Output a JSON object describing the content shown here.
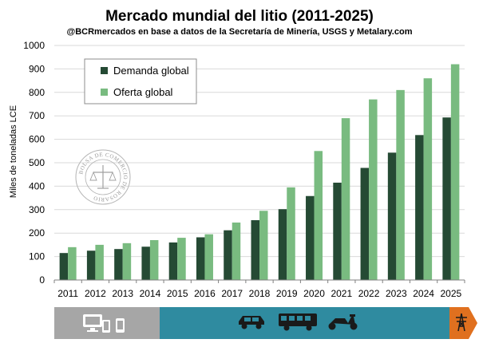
{
  "chart_data": {
    "type": "bar",
    "title": "Mercado mundial del litio (2011-2025)",
    "subtitle": "@BCRmercados en base a datos de la Secretaría de Minería, USGS y Metalary.com",
    "xlabel": "",
    "ylabel": "Miles de toneladas LCE",
    "ylim": [
      0,
      1000
    ],
    "yticks": [
      0,
      100,
      200,
      300,
      400,
      500,
      600,
      700,
      800,
      900,
      1000
    ],
    "grid": true,
    "legend_position": "top-left",
    "categories": [
      "2011",
      "2012",
      "2013",
      "2014",
      "2015",
      "2016",
      "2017",
      "2018",
      "2019",
      "2020",
      "2021",
      "2022",
      "2023",
      "2024",
      "2025"
    ],
    "series": [
      {
        "name": "Demanda global",
        "color": "#254a34",
        "values": [
          115,
          125,
          132,
          142,
          160,
          182,
          212,
          255,
          302,
          358,
          415,
          478,
          543,
          618,
          693
        ]
      },
      {
        "name": "Oferta global",
        "color": "#79bb80",
        "values": [
          140,
          150,
          157,
          170,
          180,
          195,
          245,
          295,
          395,
          550,
          690,
          770,
          810,
          860,
          920
        ]
      }
    ]
  },
  "colors": {
    "grid": "#d9d9d9",
    "axis": "#808080",
    "period_electronics": "#a6a6a6",
    "period_vehicles": "#2f8ba0",
    "period_energy": "#e0701f"
  },
  "periods": [
    {
      "name": "electronics",
      "icons": [
        "laptop-icon",
        "tablet-icon",
        "phone-icon"
      ]
    },
    {
      "name": "vehicles",
      "icons": [
        "car-icon",
        "bus-icon",
        "scooter-icon"
      ]
    },
    {
      "name": "energy",
      "icons": [
        "power-tower-icon"
      ]
    }
  ],
  "seal": {
    "text": "BOLSA DE COMERCIO DE ROSARIO"
  }
}
